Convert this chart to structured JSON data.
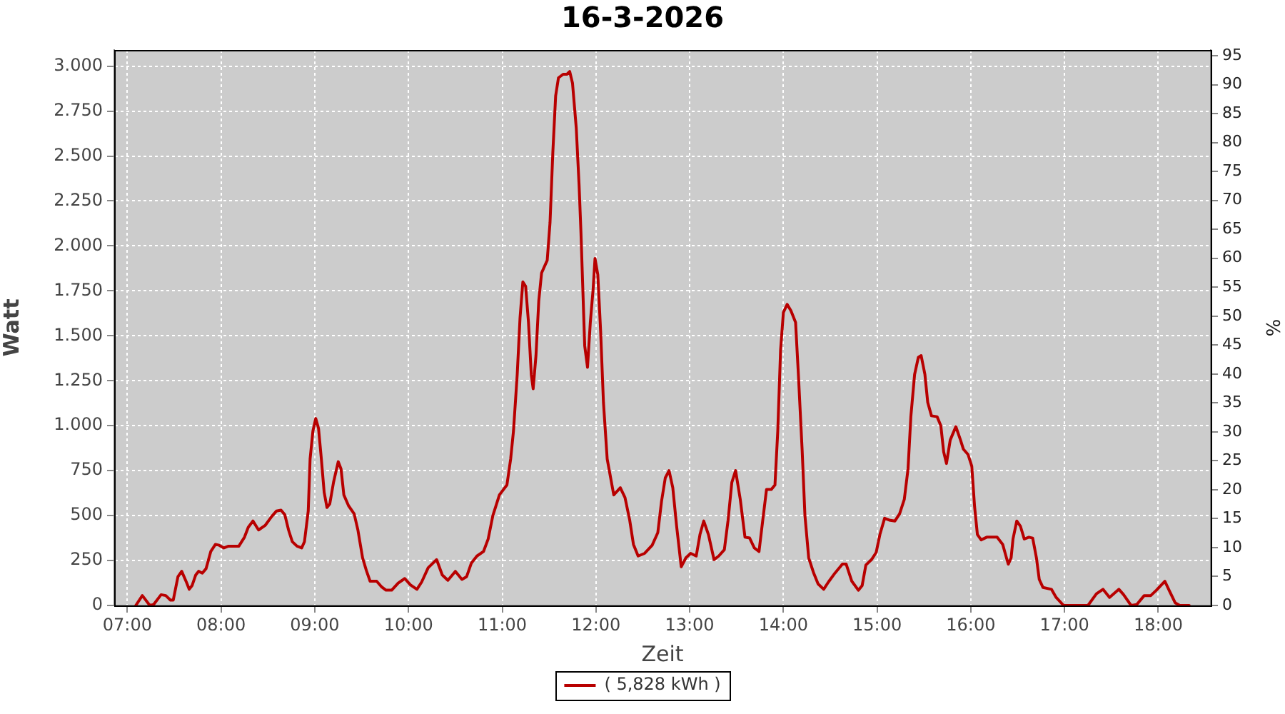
{
  "chart_data": {
    "type": "line",
    "title": "16-3-2026",
    "xlabel": "Zeit",
    "ylabel": "Watt",
    "y2label": "%",
    "x": [
      7.09,
      7.16,
      7.24,
      7.28,
      7.36,
      7.41,
      7.46,
      7.49,
      7.54,
      7.58,
      7.63,
      7.66,
      7.69,
      7.73,
      7.76,
      7.8,
      7.84,
      7.89,
      7.94,
      7.98,
      8.03,
      8.08,
      8.19,
      8.25,
      8.29,
      8.34,
      8.4,
      8.47,
      8.54,
      8.59,
      8.64,
      8.68,
      8.72,
      8.76,
      8.81,
      8.86,
      8.89,
      8.93,
      8.95,
      8.98,
      9.01,
      9.04,
      9.07,
      9.1,
      9.13,
      9.16,
      9.2,
      9.25,
      9.28,
      9.31,
      9.36,
      9.42,
      9.46,
      9.51,
      9.55,
      9.59,
      9.66,
      9.71,
      9.76,
      9.82,
      9.89,
      9.96,
      10.02,
      10.09,
      10.14,
      10.21,
      10.3,
      10.36,
      10.42,
      10.5,
      10.57,
      10.62,
      10.67,
      10.73,
      10.8,
      10.85,
      10.9,
      10.97,
      11.05,
      11.09,
      11.12,
      11.16,
      11.19,
      11.22,
      11.25,
      11.28,
      11.31,
      11.33,
      11.36,
      11.39,
      11.42,
      11.48,
      11.51,
      11.54,
      11.57,
      11.6,
      11.65,
      11.69,
      11.72,
      11.75,
      11.79,
      11.82,
      11.84,
      11.86,
      11.88,
      11.91,
      11.94,
      11.97,
      11.99,
      12.02,
      12.05,
      12.08,
      12.12,
      12.19,
      12.26,
      12.31,
      12.36,
      12.4,
      12.45,
      12.52,
      12.6,
      12.66,
      12.7,
      12.74,
      12.78,
      12.82,
      12.86,
      12.91,
      12.96,
      13.01,
      13.07,
      13.11,
      13.15,
      13.2,
      13.26,
      13.31,
      13.37,
      13.41,
      13.45,
      13.49,
      13.54,
      13.59,
      13.64,
      13.69,
      13.74,
      13.78,
      13.82,
      13.87,
      13.91,
      13.94,
      13.97,
      14.0,
      14.04,
      14.08,
      14.13,
      14.16,
      14.2,
      14.23,
      14.27,
      14.32,
      14.37,
      14.43,
      14.48,
      14.55,
      14.63,
      14.67,
      14.73,
      14.8,
      14.84,
      14.88,
      14.94,
      14.99,
      15.03,
      15.08,
      15.13,
      15.19,
      15.24,
      15.29,
      15.33,
      15.36,
      15.4,
      15.44,
      15.47,
      15.51,
      15.54,
      15.58,
      15.64,
      15.68,
      15.71,
      15.74,
      15.78,
      15.84,
      15.89,
      15.92,
      15.97,
      16.01,
      16.04,
      16.07,
      16.11,
      16.17,
      16.28,
      16.34,
      16.38,
      16.4,
      16.43,
      16.45,
      16.49,
      16.53,
      16.57,
      16.62,
      16.66,
      16.7,
      16.73,
      16.77,
      16.86,
      16.91,
      16.99,
      17.25,
      17.34,
      17.41,
      17.48,
      17.58,
      17.63,
      17.71,
      17.77,
      17.85,
      17.92,
      17.98,
      18.07,
      18.12,
      18.18,
      18.23,
      18.33
    ],
    "series": [
      {
        "name": "( 5,828 kWh )",
        "color": "#b80000",
        "values": [
          0,
          55,
          0,
          5,
          60,
          55,
          30,
          30,
          160,
          190,
          130,
          90,
          110,
          170,
          190,
          180,
          205,
          300,
          340,
          335,
          320,
          330,
          330,
          380,
          435,
          470,
          420,
          445,
          495,
          525,
          530,
          505,
          420,
          355,
          330,
          320,
          355,
          525,
          815,
          970,
          1040,
          985,
          815,
          630,
          545,
          565,
          685,
          800,
          760,
          615,
          555,
          510,
          420,
          265,
          195,
          135,
          135,
          105,
          85,
          85,
          125,
          150,
          115,
          90,
          130,
          210,
          255,
          170,
          140,
          190,
          145,
          160,
          235,
          275,
          300,
          370,
          500,
          615,
          670,
          815,
          970,
          1285,
          1600,
          1800,
          1775,
          1575,
          1285,
          1205,
          1390,
          1695,
          1850,
          1920,
          2130,
          2520,
          2835,
          2935,
          2955,
          2955,
          2970,
          2905,
          2655,
          2340,
          2075,
          1760,
          1445,
          1325,
          1575,
          1760,
          1930,
          1840,
          1525,
          1130,
          815,
          615,
          655,
          600,
          475,
          340,
          275,
          290,
          335,
          405,
          580,
          710,
          750,
          655,
          445,
          215,
          265,
          290,
          275,
          395,
          470,
          395,
          255,
          275,
          310,
          475,
          685,
          750,
          590,
          380,
          375,
          320,
          300,
          475,
          645,
          645,
          670,
          970,
          1420,
          1630,
          1675,
          1640,
          1575,
          1285,
          865,
          500,
          265,
          185,
          120,
          90,
          130,
          180,
          230,
          230,
          135,
          85,
          110,
          225,
          255,
          295,
          395,
          485,
          475,
          470,
          510,
          590,
          760,
          1050,
          1285,
          1380,
          1390,
          1285,
          1130,
          1055,
          1050,
          1000,
          855,
          790,
          920,
          995,
          920,
          870,
          840,
          775,
          550,
          395,
          365,
          380,
          380,
          340,
          265,
          230,
          265,
          370,
          470,
          440,
          370,
          380,
          375,
          265,
          145,
          100,
          90,
          45,
          0,
          0,
          65,
          90,
          45,
          90,
          60,
          0,
          5,
          55,
          55,
          85,
          135,
          80,
          15,
          0,
          0
        ]
      }
    ],
    "xlim": [
      6.86,
      18.56
    ],
    "xticks": [
      {
        "value": 7,
        "label": "07:00"
      },
      {
        "value": 8,
        "label": "08:00"
      },
      {
        "value": 9,
        "label": "09:00"
      },
      {
        "value": 10,
        "label": "10:00"
      },
      {
        "value": 11,
        "label": "11:00"
      },
      {
        "value": 12,
        "label": "12:00"
      },
      {
        "value": 13,
        "label": "13:00"
      },
      {
        "value": 14,
        "label": "14:00"
      },
      {
        "value": 15,
        "label": "15:00"
      },
      {
        "value": 16,
        "label": "16:00"
      },
      {
        "value": 17,
        "label": "17:00"
      },
      {
        "value": 18,
        "label": "18:00"
      }
    ],
    "ylim": [
      0,
      3090
    ],
    "yticks": [
      0,
      250,
      500,
      750,
      {
        "value": 1000,
        "label": "1.000"
      },
      {
        "value": 1250,
        "label": "1.250"
      },
      {
        "value": 1500,
        "label": "1.500"
      },
      {
        "value": 1750,
        "label": "1.750"
      },
      {
        "value": 2000,
        "label": "2.000"
      },
      {
        "value": 2250,
        "label": "2.250"
      },
      {
        "value": 2500,
        "label": "2.500"
      },
      {
        "value": 2750,
        "label": "2.750"
      },
      {
        "value": 3000,
        "label": "3.000"
      }
    ],
    "y2lim": [
      0,
      96
    ],
    "y2ticks": [
      0,
      5,
      10,
      15,
      20,
      25,
      30,
      35,
      40,
      45,
      50,
      55,
      60,
      65,
      70,
      75,
      80,
      85,
      90,
      95
    ],
    "grid": true,
    "legend": "bottom",
    "marker": "none"
  }
}
